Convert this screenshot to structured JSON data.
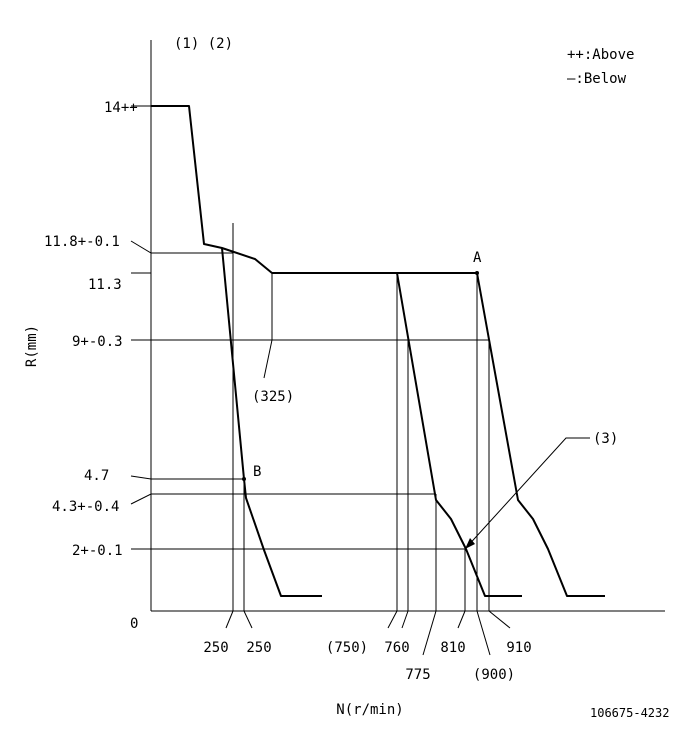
{
  "header": {
    "items": "(1) (2)"
  },
  "legend": {
    "above": "++:Above",
    "below": "—:Below"
  },
  "axes": {
    "y_label": "R(mm)",
    "x_label": "N(r/min)",
    "origin": "0"
  },
  "y_labels": {
    "r14": "14++",
    "r118": "11.8+-0.1",
    "r113": "11.3",
    "r9": "9+-0.3",
    "r47": "4.7",
    "r43": "4.3+-0.4",
    "r2": "2+-0.1"
  },
  "x_labels": {
    "n250a": "250",
    "n250b": "250",
    "n750": "(750)",
    "n760": "760",
    "n775": "775",
    "n810": "810",
    "n900": "(900)",
    "n910": "910"
  },
  "callouts": {
    "c325": "(325)",
    "c3": "(3)",
    "point_a": "A",
    "point_b": "B"
  },
  "footer": {
    "code": "106675-4232"
  }
}
